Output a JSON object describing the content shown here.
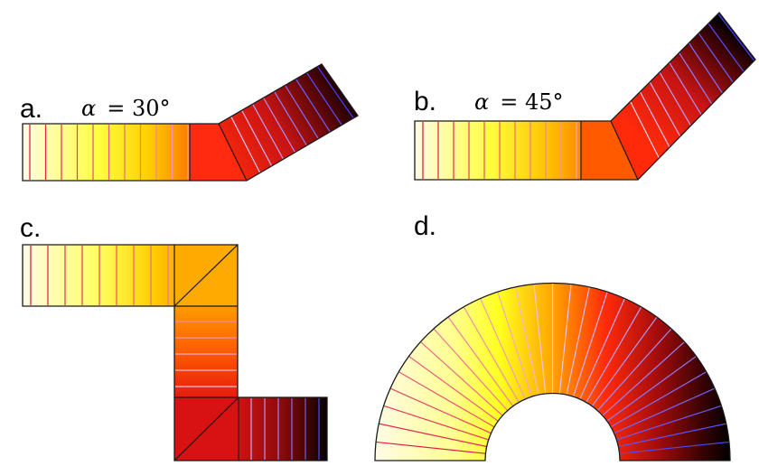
{
  "panels": {
    "a": {
      "label": "a.",
      "angle_symbol": "α",
      "angle_value": "= 30°",
      "bend_angle_deg": 30
    },
    "b": {
      "label": "b.",
      "angle_symbol": "α",
      "angle_value": "= 45°",
      "bend_angle_deg": 45
    },
    "c": {
      "label": "c."
    },
    "d": {
      "label": "d."
    }
  },
  "colors": {
    "colormap": [
      "#fffbe6",
      "#ffffa0",
      "#ffff33",
      "#ffd200",
      "#ffa500",
      "#ff6a00",
      "#ff2a0a",
      "#d81010",
      "#9a0c0c",
      "#5a0505",
      "#1e0000",
      "#000000"
    ],
    "isoline_hot": "#e0103a",
    "isoline_mid": "#f4d0e8",
    "isoline_cold": "#4040ff",
    "outline": "#1a1a1a"
  }
}
